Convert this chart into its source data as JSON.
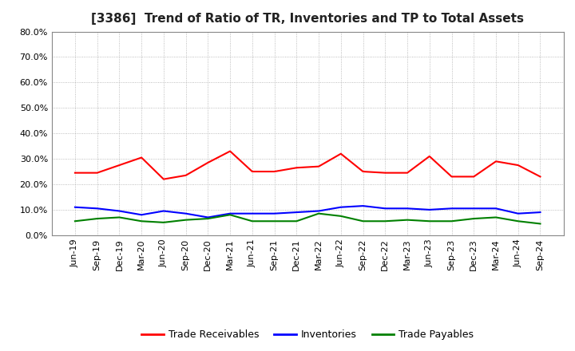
{
  "title": "[3386]  Trend of Ratio of TR, Inventories and TP to Total Assets",
  "labels": [
    "Jun-19",
    "Sep-19",
    "Dec-19",
    "Mar-20",
    "Jun-20",
    "Sep-20",
    "Dec-20",
    "Mar-21",
    "Jun-21",
    "Sep-21",
    "Dec-21",
    "Mar-22",
    "Jun-22",
    "Sep-22",
    "Dec-22",
    "Mar-23",
    "Jun-23",
    "Sep-23",
    "Dec-23",
    "Mar-24",
    "Jun-24",
    "Sep-24"
  ],
  "trade_receivables": [
    24.5,
    24.5,
    27.5,
    30.5,
    22.0,
    23.5,
    28.5,
    33.0,
    25.0,
    25.0,
    26.5,
    27.0,
    32.0,
    25.0,
    24.5,
    24.5,
    31.0,
    23.0,
    23.0,
    29.0,
    27.5,
    23.0
  ],
  "inventories": [
    11.0,
    10.5,
    9.5,
    8.0,
    9.5,
    8.5,
    7.0,
    8.5,
    8.5,
    8.5,
    9.0,
    9.5,
    11.0,
    11.5,
    10.5,
    10.5,
    10.0,
    10.5,
    10.5,
    10.5,
    8.5,
    9.0
  ],
  "trade_payables": [
    5.5,
    6.5,
    7.0,
    5.5,
    5.0,
    6.0,
    6.5,
    8.0,
    5.5,
    5.5,
    5.5,
    8.5,
    7.5,
    5.5,
    5.5,
    6.0,
    5.5,
    5.5,
    6.5,
    7.0,
    5.5,
    4.5
  ],
  "line_colors": {
    "trade_receivables": "#FF0000",
    "inventories": "#0000FF",
    "trade_payables": "#008000"
  },
  "legend_labels": [
    "Trade Receivables",
    "Inventories",
    "Trade Payables"
  ],
  "ylim": [
    0,
    80
  ],
  "yticks": [
    0,
    10,
    20,
    30,
    40,
    50,
    60,
    70,
    80
  ],
  "background_color": "#FFFFFF",
  "plot_bg_color": "#FFFFFF",
  "grid_color": "#AAAAAA",
  "title_fontsize": 11,
  "tick_fontsize": 8,
  "legend_fontsize": 9
}
